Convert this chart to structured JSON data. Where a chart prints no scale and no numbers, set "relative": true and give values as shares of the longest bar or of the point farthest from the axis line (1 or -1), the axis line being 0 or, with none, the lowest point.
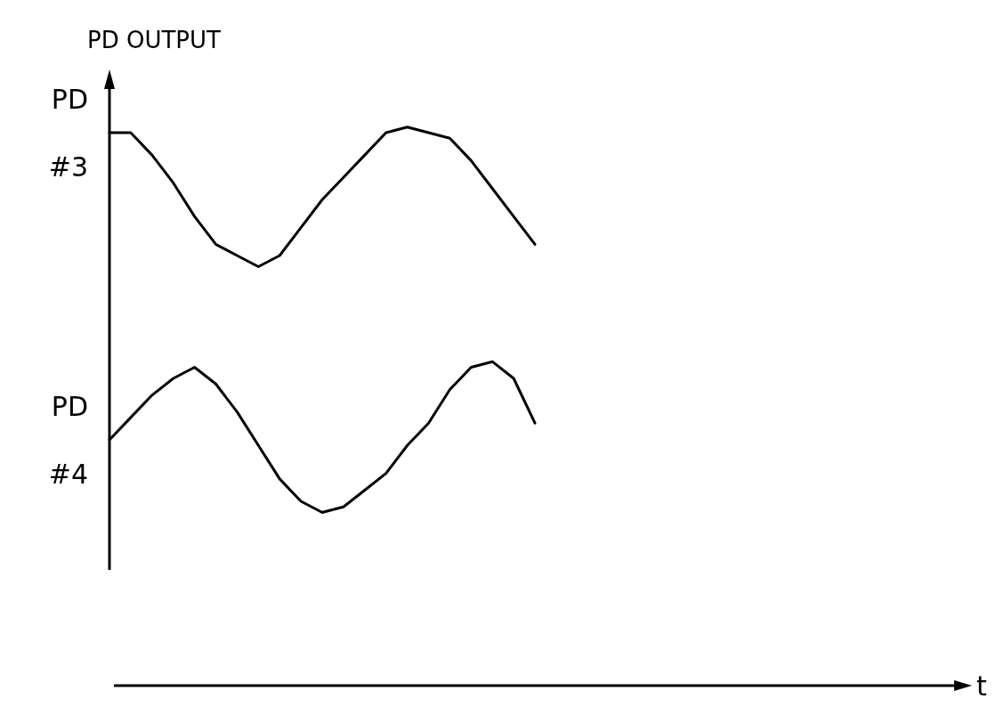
{
  "chart_data": {
    "type": "line",
    "ylabel": "PD OUTPUT",
    "xlabel": "t",
    "relative": true,
    "grid": false,
    "legend": false,
    "marker": "none",
    "line_style": "solid",
    "categories": [
      null,
      null,
      null,
      null,
      null,
      null,
      null,
      null,
      null,
      null,
      null,
      null,
      null,
      null,
      null,
      null,
      null,
      null,
      null,
      null,
      null,
      null,
      null,
      null,
      null,
      null,
      null,
      null,
      null,
      null,
      null,
      null,
      null,
      null,
      null,
      null,
      null,
      null,
      null,
      null,
      null
    ],
    "series": [
      {
        "name": "PD #3",
        "color": "#000000",
        "values": [
          0.99,
          0.99,
          0.95,
          0.9,
          0.84,
          0.79,
          0.77,
          0.75,
          0.77,
          0.82,
          0.87,
          0.91,
          0.95,
          0.99,
          1,
          0.99,
          0.98,
          0.94,
          0.89,
          0.84,
          0.79,
          null,
          null,
          null,
          null,
          null,
          null,
          null,
          null,
          null,
          null,
          null,
          null,
          null,
          null,
          null,
          null,
          null,
          null,
          null,
          null
        ]
      },
      {
        "name": "PD #4",
        "color": "#000000",
        "values": [
          0.44,
          0.48,
          0.52,
          0.55,
          0.57,
          0.54,
          0.49,
          0.43,
          0.37,
          0.33,
          0.31,
          0.32,
          0.35,
          0.38,
          0.43,
          0.47,
          0.53,
          0.57,
          0.58,
          0.55,
          0.47,
          null,
          null,
          null,
          null,
          null,
          null,
          null,
          null,
          null,
          null,
          null,
          null,
          null,
          null,
          null,
          null,
          null,
          null,
          null,
          null
        ]
      }
    ]
  }
}
